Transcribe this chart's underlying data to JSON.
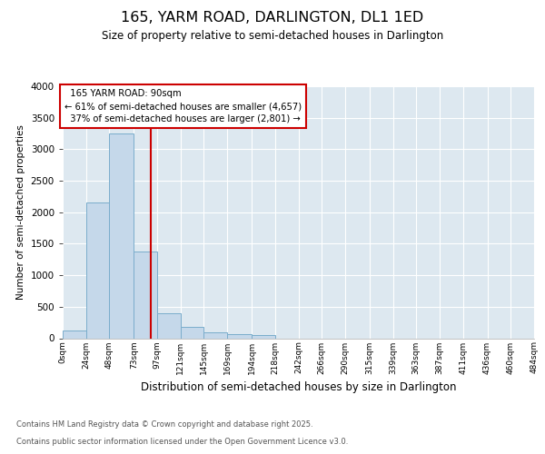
{
  "title": "165, YARM ROAD, DARLINGTON, DL1 1ED",
  "subtitle": "Size of property relative to semi-detached houses in Darlington",
  "xlabel": "Distribution of semi-detached houses by size in Darlington",
  "ylabel": "Number of semi-detached properties",
  "property_size": 90,
  "property_label": "165 YARM ROAD: 90sqm",
  "pct_smaller": 61,
  "pct_larger": 37,
  "n_smaller": 4657,
  "n_larger": 2801,
  "footer_line1": "Contains HM Land Registry data © Crown copyright and database right 2025.",
  "footer_line2": "Contains public sector information licensed under the Open Government Licence v3.0.",
  "bar_color": "#c5d8ea",
  "bar_edge_color": "#7aadcc",
  "vline_color": "#cc0000",
  "annotation_box_color": "#cc0000",
  "background_color": "#dde8f0",
  "ylim": [
    0,
    4000
  ],
  "yticks": [
    0,
    500,
    1000,
    1500,
    2000,
    2500,
    3000,
    3500,
    4000
  ],
  "bin_edges": [
    0,
    24,
    48,
    73,
    97,
    121,
    145,
    169,
    194,
    218,
    242,
    266,
    290,
    315,
    339,
    363,
    387,
    411,
    436,
    460,
    484
  ],
  "bin_labels": [
    "0sqm",
    "24sqm",
    "48sqm",
    "73sqm",
    "97sqm",
    "121sqm",
    "145sqm",
    "169sqm",
    "194sqm",
    "218sqm",
    "242sqm",
    "266sqm",
    "290sqm",
    "315sqm",
    "339sqm",
    "363sqm",
    "387sqm",
    "411sqm",
    "436sqm",
    "460sqm",
    "484sqm"
  ],
  "bar_heights": [
    120,
    2150,
    3250,
    1380,
    400,
    175,
    100,
    60,
    55,
    0,
    0,
    0,
    0,
    0,
    0,
    0,
    0,
    0,
    0,
    0
  ]
}
